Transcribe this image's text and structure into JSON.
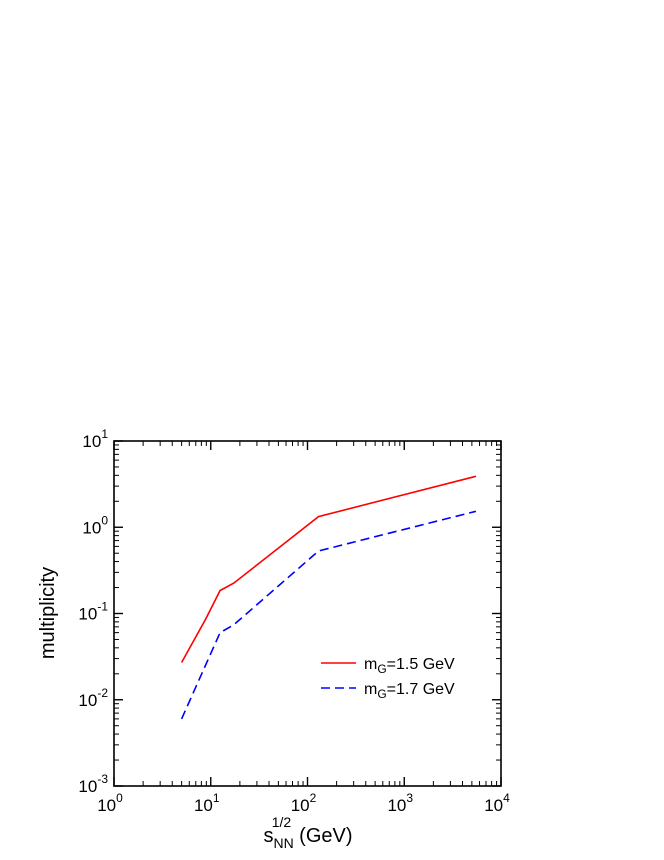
{
  "chart_data": {
    "type": "line",
    "x_scale": "log",
    "y_scale": "log",
    "xlim": [
      1,
      10000
    ],
    "ylim": [
      0.001,
      10
    ],
    "xlabel": {
      "base": "s",
      "sub": "NN",
      "sup": "1/2",
      "unit": "(GeV)"
    },
    "ylabel": "multiplicity",
    "x_ticks": [
      {
        "base": "10",
        "exp": "0"
      },
      {
        "base": "10",
        "exp": "1"
      },
      {
        "base": "10",
        "exp": "2"
      },
      {
        "base": "10",
        "exp": "3"
      },
      {
        "base": "10",
        "exp": "4"
      }
    ],
    "y_ticks": [
      {
        "base": "10",
        "exp": "-3"
      },
      {
        "base": "10",
        "exp": "-2"
      },
      {
        "base": "10",
        "exp": "-1"
      },
      {
        "base": "10",
        "exp": "0"
      },
      {
        "base": "10",
        "exp": "1"
      }
    ],
    "legend_position": "lower-right",
    "series": [
      {
        "name": {
          "pre": "m",
          "sub": "G",
          "post": "=1.5 GeV"
        },
        "color": "#ff0000",
        "dash": "solid",
        "points": [
          [
            5,
            0.027
          ],
          [
            8.8,
            0.085
          ],
          [
            12.5,
            0.185
          ],
          [
            17.3,
            0.225
          ],
          [
            130,
            1.33
          ],
          [
            5500,
            3.9
          ]
        ]
      },
      {
        "name": {
          "pre": "m",
          "sub": "G",
          "post": "=1.7 GeV"
        },
        "color": "#0000ff",
        "dash": "dashed",
        "points": [
          [
            5,
            0.006
          ],
          [
            12.5,
            0.06
          ],
          [
            17.3,
            0.074
          ],
          [
            130,
            0.53
          ],
          [
            5500,
            1.53
          ]
        ]
      }
    ]
  }
}
